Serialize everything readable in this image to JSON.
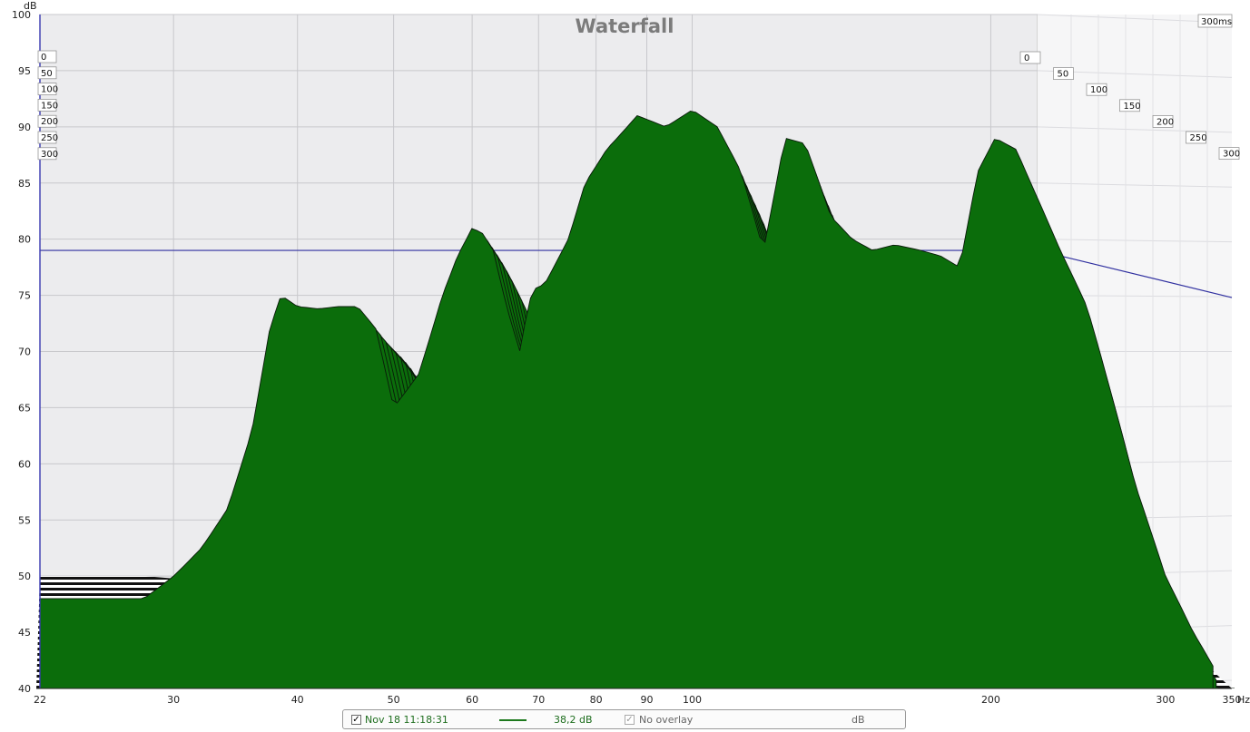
{
  "chart_data": {
    "type": "area",
    "title": "Waterfall",
    "y_unit": "dB",
    "x_unit": "Hz",
    "x_scale": "log",
    "xlim": [
      22,
      350
    ],
    "ylim": [
      40,
      100
    ],
    "grid": true,
    "x_ticks": [
      22,
      30,
      40,
      50,
      60,
      70,
      80,
      90,
      100,
      200,
      300,
      350
    ],
    "x_tick_labels": [
      "22",
      "30",
      "40",
      "50",
      "60",
      "70",
      "80",
      "90",
      "100",
      "200",
      "300",
      "350"
    ],
    "y_ticks": [
      40,
      45,
      50,
      55,
      60,
      65,
      70,
      75,
      80,
      85,
      90,
      95,
      100
    ],
    "time_axis": {
      "unit": "ms",
      "max_label": "300ms",
      "labels": [
        "0",
        "50",
        "100",
        "150",
        "200",
        "250",
        "300"
      ],
      "values": [
        0,
        50,
        100,
        150,
        200,
        250,
        300
      ]
    },
    "reference_level_db": 79,
    "fill_color": "#0b6d0b",
    "outline_color": "#0a1a0a",
    "reference_line_color": "#3030a0",
    "front_slice": {
      "time_ms": 0,
      "x": [
        22,
        28,
        30,
        32,
        34,
        36,
        37.5,
        38.5,
        40,
        42,
        44,
        46,
        48,
        50,
        53,
        56,
        58,
        60,
        61.5,
        63,
        65,
        67,
        68,
        69,
        71,
        73,
        75,
        78,
        82,
        88,
        94,
        100,
        106,
        112,
        118,
        124,
        130,
        138,
        145,
        152,
        160,
        170,
        178,
        186,
        194,
        202,
        212,
        222,
        235,
        250,
        265,
        280,
        300,
        320,
        335
      ],
      "y": [
        48,
        48,
        50,
        52.5,
        56,
        63,
        72,
        75,
        74,
        73.8,
        74,
        74,
        72,
        65,
        68,
        75,
        78.5,
        81,
        80.5,
        79,
        74,
        70,
        73,
        75.5,
        76,
        78,
        80,
        85,
        88,
        91,
        90,
        91.5,
        90,
        86,
        79,
        89,
        88.5,
        82,
        80,
        79,
        79.5,
        79,
        78.5,
        77.5,
        86,
        89,
        88,
        84,
        79,
        74,
        66,
        58,
        50,
        45,
        42
      ]
    },
    "slice_count": 30
  },
  "legend": {
    "measurement_checked": true,
    "measurement_label": "Nov 18 11:18:31",
    "measurement_value": "38,2 dB",
    "overlay_checked": true,
    "overlay_label": "No overlay",
    "overlay_unit": "dB",
    "measurement_color": "#1e7a1e"
  }
}
